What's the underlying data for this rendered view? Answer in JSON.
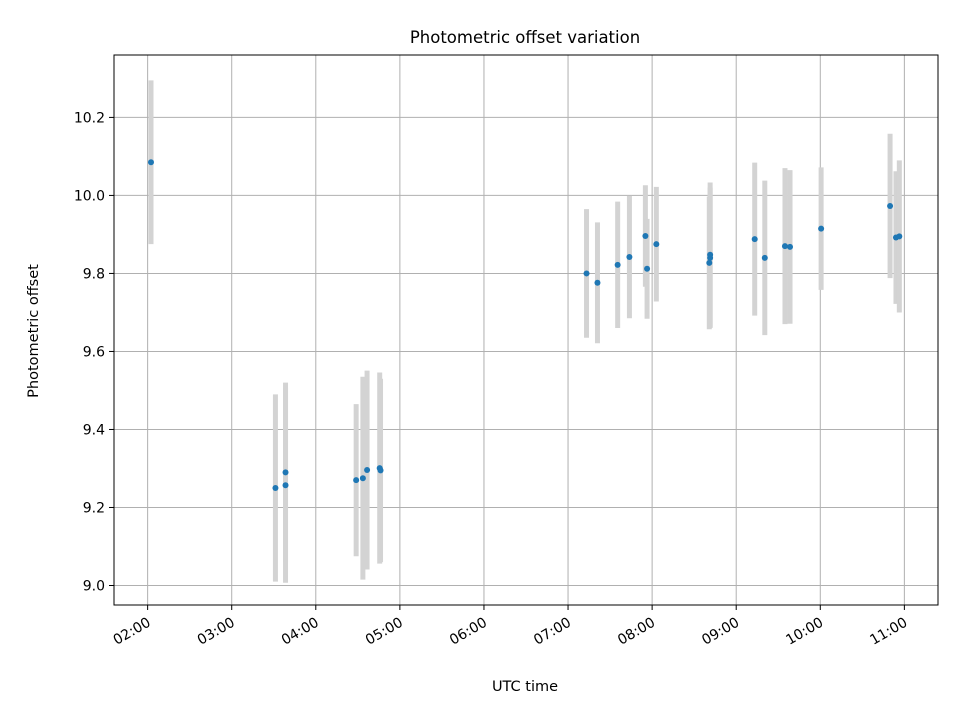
{
  "chart_data": {
    "type": "scatter",
    "title": "Photometric offset variation",
    "xlabel": "UTC time",
    "ylabel": "Photometric offset",
    "x_tick_labels": [
      "02:00",
      "03:00",
      "04:00",
      "05:00",
      "06:00",
      "07:00",
      "08:00",
      "09:00",
      "10:00",
      "11:00"
    ],
    "x_ticks_hours": [
      2,
      3,
      4,
      5,
      6,
      7,
      8,
      9,
      10,
      11
    ],
    "xlim_hours": [
      1.6,
      11.4
    ],
    "y_ticks": [
      9.0,
      9.2,
      9.4,
      9.6,
      9.8,
      10.0,
      10.2
    ],
    "y_tick_labels": [
      "9.0",
      "9.2",
      "9.4",
      "9.6",
      "9.8",
      "10.0",
      "10.2"
    ],
    "ylim": [
      8.95,
      10.36
    ],
    "grid": true,
    "colors": {
      "point": "#1f77b4",
      "errorbar": "#d3d3d3",
      "grid": "#b0b0b0"
    },
    "series": [
      {
        "x_hours": [
          2.04,
          3.52,
          3.64,
          3.64,
          4.48,
          4.56,
          4.61,
          4.76,
          4.77,
          7.22,
          7.35,
          7.59,
          7.73,
          7.92,
          7.94,
          8.05,
          8.68,
          8.69,
          8.69,
          9.22,
          9.34,
          9.58,
          9.64,
          10.01,
          10.83,
          10.9,
          10.94
        ],
        "y": [
          10.085,
          9.25,
          9.257,
          9.29,
          9.27,
          9.275,
          9.296,
          9.301,
          9.295,
          9.8,
          9.776,
          9.822,
          9.842,
          9.896,
          9.812,
          9.875,
          9.827,
          9.84,
          9.848,
          9.888,
          9.84,
          9.87,
          9.868,
          9.915,
          9.973,
          9.892,
          9.895
        ],
        "y_err": [
          0.21,
          0.24,
          0.25,
          0.23,
          0.195,
          0.26,
          0.255,
          0.245,
          0.235,
          0.165,
          0.155,
          0.162,
          0.157,
          0.13,
          0.128,
          0.147,
          0.17,
          0.18,
          0.185,
          0.196,
          0.198,
          0.2,
          0.197,
          0.157,
          0.185,
          0.17,
          0.195
        ]
      }
    ]
  }
}
